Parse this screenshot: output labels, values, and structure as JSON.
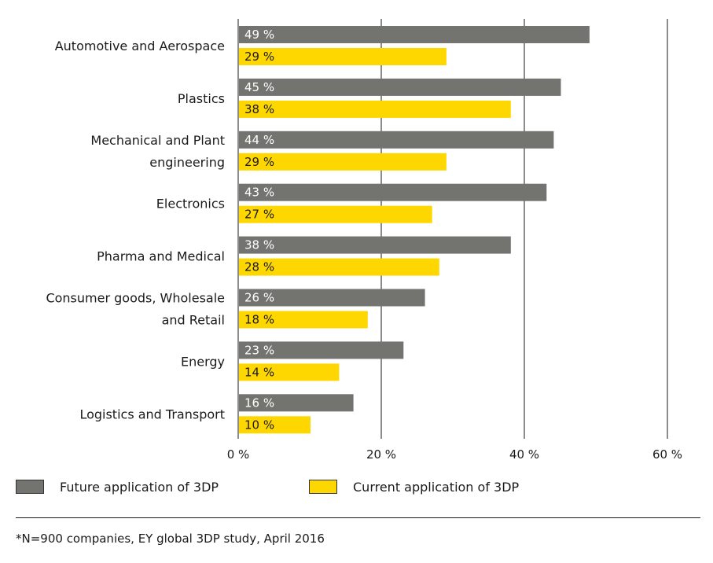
{
  "chart_data": {
    "type": "bar",
    "orientation": "horizontal",
    "categories": [
      [
        "Automotive and Aerospace"
      ],
      [
        "Plastics"
      ],
      [
        "Mechanical and Plant",
        "engineering"
      ],
      [
        "Electronics"
      ],
      [
        "Pharma and Medical"
      ],
      [
        "Consumer goods, Wholesale",
        "and Retail"
      ],
      [
        "Energy"
      ],
      [
        "Logistics and Transport"
      ]
    ],
    "series": [
      {
        "name": "Future application of 3DP",
        "color": "#737370",
        "values": [
          49,
          45,
          44,
          43,
          38,
          26,
          23,
          16
        ],
        "labels": [
          "49 %",
          "45 %",
          "44 %",
          "43 %",
          "38 %",
          "26 %",
          "23 %",
          "16 %"
        ]
      },
      {
        "name": "Current application of 3DP",
        "color": "#ffd700",
        "values": [
          29,
          38,
          29,
          27,
          28,
          18,
          14,
          10
        ],
        "labels": [
          "29 %",
          "38 %",
          "29 %",
          "27 %",
          "28 %",
          "18 %",
          "14 %",
          "10 %"
        ]
      }
    ],
    "x_ticks": [
      0,
      20,
      40,
      60
    ],
    "x_tick_labels": [
      "0 %",
      "20 %",
      "40 %",
      "60 %"
    ],
    "xlim": [
      0,
      60
    ],
    "grid": true,
    "legend_position": "bottom-left",
    "footnote": "*N=900 companies, EY global 3DP study, April 2016"
  }
}
